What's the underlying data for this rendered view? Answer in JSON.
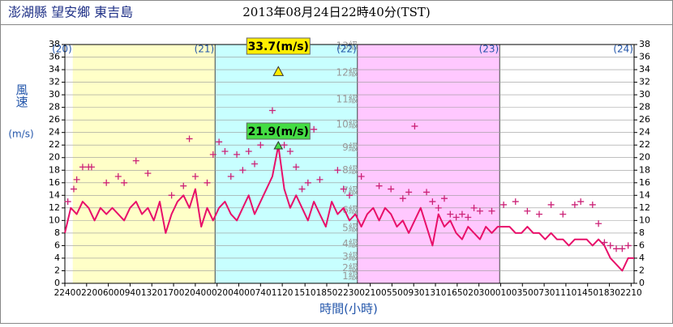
{
  "chart_data": {
    "type": "line",
    "title": "澎湖縣 望安鄉 東吉島",
    "subtitle": "2013年08月24日22時40分(TST)",
    "y_label": "風速",
    "y_unit": "(m/s)",
    "x_label": "時間(小時)",
    "xlim": [
      0,
      96
    ],
    "ylim": [
      0,
      38
    ],
    "yticks": [
      0,
      2,
      4,
      6,
      8,
      10,
      12,
      14,
      16,
      18,
      20,
      22,
      24,
      26,
      28,
      30,
      32,
      34,
      36,
      38
    ],
    "xticks": [
      {
        "value": 0,
        "label": "2240"
      },
      {
        "value": 3.667,
        "label": "0220"
      },
      {
        "value": 7.333,
        "label": "0600"
      },
      {
        "value": 11,
        "label": "0940"
      },
      {
        "value": 14.667,
        "label": "1320"
      },
      {
        "value": 18.333,
        "label": "1700"
      },
      {
        "value": 22,
        "label": "2040"
      },
      {
        "value": 25.667,
        "label": "0020"
      },
      {
        "value": 29.333,
        "label": "0400"
      },
      {
        "value": 33,
        "label": "0740"
      },
      {
        "value": 36.667,
        "label": "1120"
      },
      {
        "value": 40.5,
        "label": "1510"
      },
      {
        "value": 44.167,
        "label": "1850"
      },
      {
        "value": 47.833,
        "label": "2230"
      },
      {
        "value": 51.5,
        "label": "0210"
      },
      {
        "value": 55.167,
        "label": "0550"
      },
      {
        "value": 58.833,
        "label": "0930"
      },
      {
        "value": 62.5,
        "label": "1310"
      },
      {
        "value": 66.167,
        "label": "1650"
      },
      {
        "value": 69.833,
        "label": "2030"
      },
      {
        "value": 73.5,
        "label": "0010"
      },
      {
        "value": 77.167,
        "label": "0350"
      },
      {
        "value": 80.833,
        "label": "0730"
      },
      {
        "value": 84.5,
        "label": "1110"
      },
      {
        "value": 88.167,
        "label": "1450"
      },
      {
        "value": 91.833,
        "label": "1830"
      },
      {
        "value": 95.5,
        "label": "2210"
      }
    ],
    "day_labels": [
      {
        "value": 1.333,
        "label": "(20)"
      },
      {
        "value": 25.333,
        "label": "(21)"
      },
      {
        "value": 49.333,
        "label": "(22)"
      },
      {
        "value": 73.333,
        "label": "(23)"
      },
      {
        "value": 96,
        "label": "(24)"
      }
    ],
    "bands": [
      {
        "from": 1.333,
        "to": 25.333,
        "color": "#ffffc8"
      },
      {
        "from": 25.333,
        "to": 49.333,
        "color": "#c8ffff"
      },
      {
        "from": 49.333,
        "to": 73.333,
        "color": "#ffc8ff"
      }
    ],
    "beaufort": [
      {
        "value": 0.3,
        "label": "1級"
      },
      {
        "value": 1.6,
        "label": "2級"
      },
      {
        "value": 3.4,
        "label": "3級"
      },
      {
        "value": 5.5,
        "label": "4級"
      },
      {
        "value": 8.0,
        "label": "5級"
      },
      {
        "value": 10.8,
        "label": "6級"
      },
      {
        "value": 13.9,
        "label": "7級"
      },
      {
        "value": 17.2,
        "label": "8級"
      },
      {
        "value": 20.8,
        "label": "9級"
      },
      {
        "value": 24.5,
        "label": "10級"
      },
      {
        "value": 28.5,
        "label": "11級"
      },
      {
        "value": 32.7,
        "label": "12級"
      },
      {
        "value": 37.0,
        "label": "13級"
      }
    ],
    "series": [
      {
        "color": "#e8106a",
        "x": [
          0,
          1,
          2,
          3,
          4,
          5,
          6,
          7,
          8,
          9,
          10,
          11,
          12,
          13,
          14,
          15,
          16,
          17,
          18,
          19,
          20,
          21,
          22,
          23,
          24,
          25,
          26,
          27,
          28,
          29,
          30,
          31,
          32,
          33,
          34,
          35,
          36,
          37,
          38,
          39,
          40,
          41,
          42,
          43,
          44,
          45,
          46,
          47,
          48,
          49,
          50,
          51,
          52,
          53,
          54,
          55,
          56,
          57,
          58,
          59,
          60,
          61,
          62,
          63,
          64,
          65,
          66,
          67,
          68,
          69,
          70,
          71,
          72,
          73,
          74,
          75,
          76,
          77,
          78,
          79,
          80,
          81,
          82,
          83,
          84,
          85,
          86,
          87,
          88,
          89,
          90,
          91,
          92,
          93,
          94,
          95,
          96
        ],
        "values": [
          8,
          12,
          11,
          13,
          12,
          10,
          12,
          11,
          12,
          11,
          10,
          12,
          13,
          11,
          12,
          10,
          13,
          8,
          11,
          13,
          14,
          12,
          15,
          9,
          12,
          10,
          12,
          13,
          11,
          10,
          12,
          14,
          11,
          13,
          15,
          17,
          21.9,
          15,
          12,
          14,
          12,
          10,
          13,
          11,
          9,
          13,
          11,
          12,
          10,
          11,
          9,
          11,
          12,
          10,
          12,
          11,
          9,
          10,
          8,
          10,
          12,
          9,
          6,
          11,
          9,
          10,
          8,
          7,
          9,
          8,
          7,
          9,
          8,
          9,
          9,
          9,
          8,
          8,
          9,
          8,
          8,
          7,
          8,
          7,
          7,
          6,
          7,
          7,
          7,
          6,
          7,
          6,
          4,
          3,
          2,
          4,
          4
        ]
      },
      {
        "color": "#cc2277",
        "x": [
          0.5,
          1.5,
          2,
          3,
          4,
          4.5,
          7,
          9,
          10,
          12,
          14,
          18,
          20,
          21,
          22,
          24,
          25,
          26,
          27,
          28,
          29,
          30,
          31,
          32,
          33,
          34,
          35,
          37,
          38,
          39,
          40,
          41,
          42,
          43,
          46,
          47,
          48,
          50,
          53,
          55,
          57,
          58,
          59,
          61,
          62,
          63,
          64,
          65,
          66,
          67,
          68,
          69,
          70,
          72,
          74,
          76,
          78,
          80,
          82,
          84,
          86,
          87,
          89,
          90,
          91,
          92,
          93,
          94,
          95
        ],
        "values": [
          13,
          15,
          16.5,
          18.5,
          18.5,
          18.5,
          16,
          17,
          16,
          19.5,
          17.5,
          14,
          15.5,
          23,
          17,
          16,
          20.5,
          22.5,
          21,
          17,
          20.5,
          18,
          21,
          19,
          22,
          25,
          27.5,
          22,
          21,
          18.5,
          15,
          16,
          24.5,
          16.5,
          18,
          15,
          14,
          17,
          15.5,
          15,
          13.5,
          14.5,
          25,
          14.5,
          13,
          12,
          13.5,
          11,
          10.5,
          11,
          10.5,
          12,
          11.5,
          11.5,
          12.5,
          13,
          11.5,
          11,
          12.5,
          11,
          12.5,
          13,
          12.5,
          9.5,
          6.5,
          6,
          5.5,
          5.5,
          6
        ]
      }
    ],
    "annotations": [
      {
        "label": "33.7(m/s)",
        "x": 36,
        "value": 33.7,
        "color": "#ffee00"
      },
      {
        "label": "21.9(m/s)",
        "x": 36,
        "value": 21.9,
        "color": "#44dd44"
      }
    ],
    "grid": true
  }
}
